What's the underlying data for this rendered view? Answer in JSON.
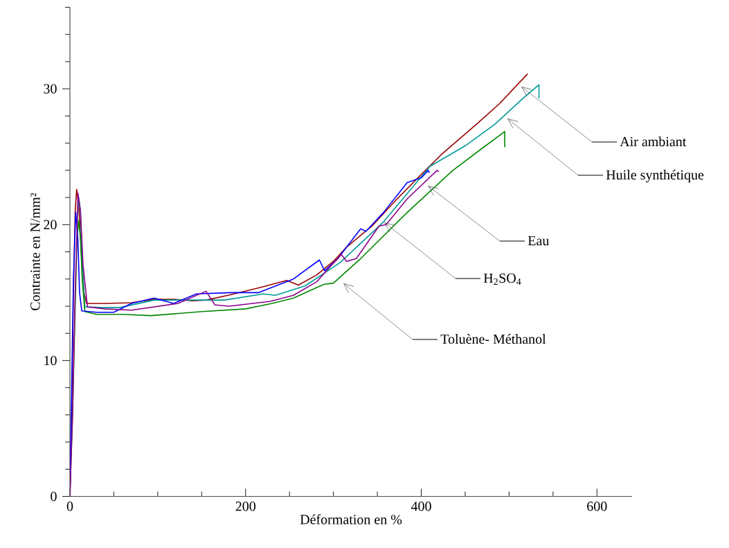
{
  "chart_data": {
    "type": "line",
    "xlabel": "Déformation en %",
    "ylabel": "Contrainte en N/mm²",
    "xlim": [
      0,
      640
    ],
    "ylim": [
      0,
      36
    ],
    "xticks": [
      0,
      {
        "value": 50,
        "label": null
      },
      {
        "value": 100,
        "label": null
      },
      {
        "value": 150,
        "label": null
      },
      200,
      {
        "value": 250,
        "label": null
      },
      {
        "value": 300,
        "label": null
      },
      {
        "value": 350,
        "label": null
      },
      400,
      {
        "value": 450,
        "label": null
      },
      {
        "value": 500,
        "label": null
      },
      {
        "value": 550,
        "label": null
      },
      600
    ],
    "yticks": [
      0,
      {
        "value": 2,
        "label": null
      },
      {
        "value": 4,
        "label": null
      },
      {
        "value": 6,
        "label": null
      },
      {
        "value": 8,
        "label": null
      },
      10,
      {
        "value": 12,
        "label": null
      },
      {
        "value": 14,
        "label": null
      },
      {
        "value": 16,
        "label": null
      },
      {
        "value": 18,
        "label": null
      },
      20,
      {
        "value": 22,
        "label": null
      },
      {
        "value": 24,
        "label": null
      },
      {
        "value": 26,
        "label": null
      },
      {
        "value": 28,
        "label": null
      },
      30,
      {
        "value": 32,
        "label": null
      },
      {
        "value": 34,
        "label": null
      },
      {
        "value": 36,
        "label": null
      }
    ],
    "grid": false,
    "legend": false,
    "marker": "none",
    "line_style": "solid",
    "series": [
      {
        "color": "#990000",
        "x": [
          0,
          2,
          4,
          6,
          7.7,
          10,
          13,
          16,
          19,
          40,
          70,
          95,
          120,
          140,
          155,
          180,
          215,
          247,
          260,
          281,
          300,
          315,
          344,
          371,
          397,
          423.5,
          463,
          489,
          521
        ],
        "values": [
          0,
          6,
          15,
          21,
          22.6,
          21.5,
          18,
          15,
          14.2,
          14.2,
          14.25,
          14.5,
          14.5,
          14.4,
          14.45,
          14.8,
          15.35,
          15.9,
          15.55,
          16.3,
          17.3,
          18.35,
          19.9,
          21.8,
          23.5,
          25.2,
          27.4,
          28.9,
          31.1
        ]
      },
      {
        "color": "#009999",
        "x": [
          8,
          10,
          12,
          14,
          17,
          35,
          57,
          96,
          123,
          176,
          220,
          234,
          268,
          307.5,
          357,
          410,
          450,
          484,
          515,
          534,
          534
        ],
        "values": [
          20,
          22,
          21,
          17,
          13.95,
          13.9,
          13.9,
          14.45,
          14.45,
          14.45,
          14.9,
          14.8,
          15.5,
          17.2,
          20.2,
          24.3,
          25.8,
          27.4,
          29.25,
          30.3,
          29.3
        ]
      },
      {
        "color": "#008800",
        "x": [
          0,
          3,
          6,
          8,
          10,
          12,
          14,
          17,
          30,
          60,
          92,
          150,
          200,
          230,
          254.5,
          289,
          300,
          331,
          384,
          436,
          471,
          495,
          495
        ],
        "values": [
          0,
          6,
          14,
          19,
          20.3,
          19,
          16,
          13.6,
          13.4,
          13.4,
          13.3,
          13.6,
          13.8,
          14.2,
          14.6,
          15.6,
          15.7,
          17.5,
          20.9,
          24,
          25.7,
          26.85,
          25.7
        ]
      },
      {
        "color": "#0000ff",
        "x": [
          0,
          2,
          4,
          6.6,
          9,
          11,
          13.5,
          30,
          50,
          70,
          96,
          118,
          144,
          183,
          215,
          254.5,
          284,
          290,
          305,
          331,
          337,
          357,
          384,
          400,
          408,
          409
        ],
        "values": [
          0,
          8,
          16,
          20.9,
          19,
          15,
          13.65,
          13.55,
          13.55,
          14.2,
          14.6,
          14.2,
          14.9,
          15.0,
          15.0,
          16.0,
          17.4,
          16.6,
          17.5,
          19.7,
          19.5,
          20.9,
          23.1,
          23.45,
          24.0,
          23.8
        ]
      },
      {
        "color": "#8b008b",
        "x": [
          0,
          3,
          6,
          9.2,
          12,
          15,
          20,
          40,
          70,
          123,
          155,
          165,
          181,
          228,
          254.5,
          281,
          292,
          309,
          315,
          326,
          352,
          360,
          384,
          418,
          420
        ],
        "values": [
          0,
          6,
          15,
          22.3,
          21,
          17,
          13.95,
          13.8,
          13.7,
          14.2,
          15.1,
          14.1,
          14.0,
          14.35,
          14.8,
          15.8,
          16.6,
          17.8,
          17.3,
          17.5,
          19.9,
          20.0,
          21.9,
          24.0,
          23.9
        ]
      }
    ],
    "annotations": [
      "Air ambiant",
      "Huile synthétique",
      "Eau",
      "H$_{2}$SO$_{4}$",
      "Toluène- Méthanol"
    ]
  }
}
